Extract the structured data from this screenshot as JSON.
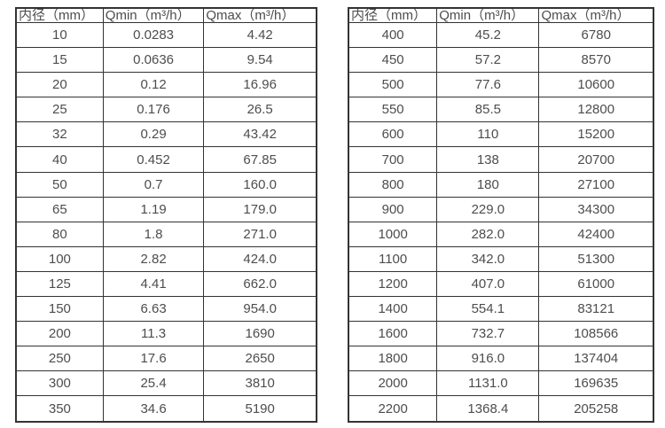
{
  "page": {
    "background": "#ffffff",
    "border_color": "#333333",
    "text_color": "#4d4d4d"
  },
  "tables": [
    {
      "name": "pipe-flow-table-small-diameters",
      "headers": [
        "内径（mm）",
        "Qmin（m³/h）",
        "Qmax（m³/h）"
      ],
      "rows": [
        [
          "10",
          "0.0283",
          "4.42"
        ],
        [
          "15",
          "0.0636",
          "9.54"
        ],
        [
          "20",
          "0.12",
          "16.96"
        ],
        [
          "25",
          "0.176",
          "26.5"
        ],
        [
          "32",
          "0.29",
          "43.42"
        ],
        [
          "40",
          "0.452",
          "67.85"
        ],
        [
          "50",
          "0.7",
          "160.0"
        ],
        [
          "65",
          "1.19",
          "179.0"
        ],
        [
          "80",
          "1.8",
          "271.0"
        ],
        [
          "100",
          "2.82",
          "424.0"
        ],
        [
          "125",
          "4.41",
          "662.0"
        ],
        [
          "150",
          "6.63",
          "954.0"
        ],
        [
          "200",
          "11.3",
          "1690"
        ],
        [
          "250",
          "17.6",
          "2650"
        ],
        [
          "300",
          "25.4",
          "3810"
        ],
        [
          "350",
          "34.6",
          "5190"
        ]
      ]
    },
    {
      "name": "pipe-flow-table-large-diameters",
      "headers": [
        "内径（mm）",
        "Qmin（m³/h）",
        "Qmax（m³/h）"
      ],
      "rows": [
        [
          "400",
          "45.2",
          "6780"
        ],
        [
          "450",
          "57.2",
          "8570"
        ],
        [
          "500",
          "77.6",
          "10600"
        ],
        [
          "550",
          "85.5",
          "12800"
        ],
        [
          "600",
          "110",
          "15200"
        ],
        [
          "700",
          "138",
          "20700"
        ],
        [
          "800",
          "180",
          "27100"
        ],
        [
          "900",
          "229.0",
          "34300"
        ],
        [
          "1000",
          "282.0",
          "42400"
        ],
        [
          "1100",
          "342.0",
          "51300"
        ],
        [
          "1200",
          "407.0",
          "61000"
        ],
        [
          "1400",
          "554.1",
          "83121"
        ],
        [
          "1600",
          "732.7",
          "108566"
        ],
        [
          "1800",
          "916.0",
          "137404"
        ],
        [
          "2000",
          "1131.0",
          "169635"
        ],
        [
          "2200",
          "1368.4",
          "205258"
        ]
      ]
    }
  ]
}
